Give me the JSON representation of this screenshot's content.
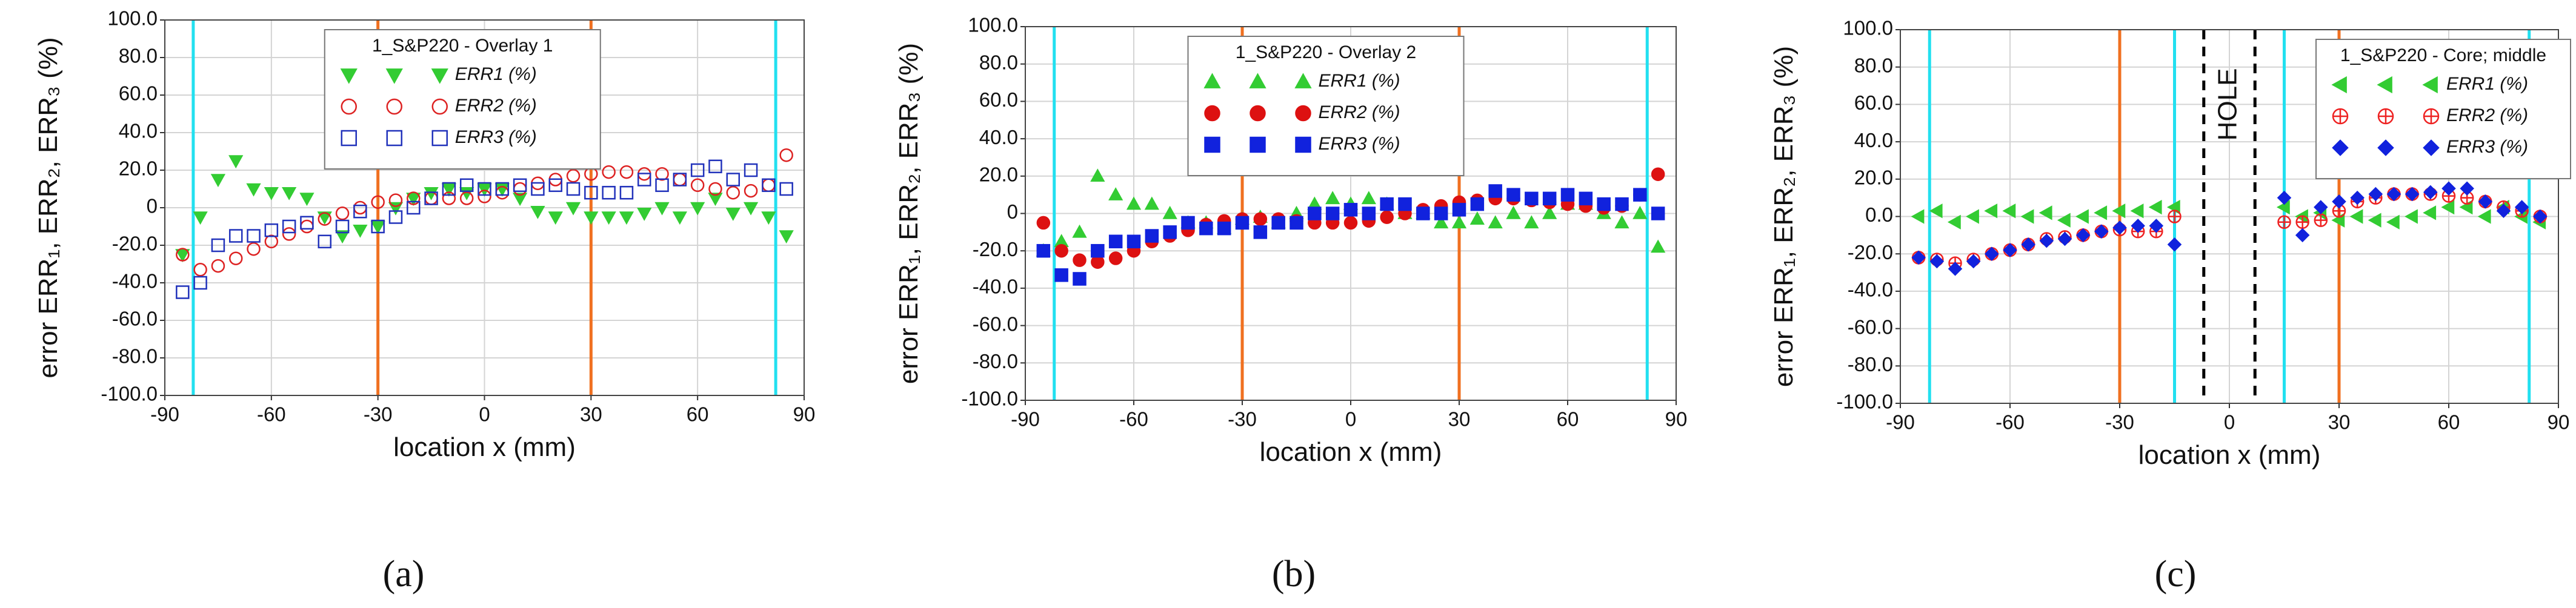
{
  "chart_data": [
    {
      "type": "scatter",
      "caption": "(a)",
      "legend_title": "1_S&P220 - Overlay 1",
      "legend": "upper center",
      "xlabel": "location x (mm)",
      "ylabel": "error ERR₁, ERR₂, ERR₃ (%)",
      "xlim": [
        -90,
        90
      ],
      "xticks": [
        -90,
        -60,
        -30,
        0,
        30,
        60,
        90
      ],
      "ylim": [
        -100,
        100
      ],
      "yticks": [
        {
          "value": -100,
          "label": "-100.0"
        },
        {
          "value": -80,
          "label": "-80.0"
        },
        {
          "value": -60,
          "label": "-60.0"
        },
        {
          "value": -40,
          "label": "-40.0"
        },
        {
          "value": -20,
          "label": "-20.0"
        },
        0,
        {
          "value": 20,
          "label": "20.0"
        },
        {
          "value": 40,
          "label": "40.0"
        },
        {
          "value": 60,
          "label": "60.0"
        },
        {
          "value": 80,
          "label": "80.0"
        },
        {
          "value": 100,
          "label": "100.0"
        }
      ],
      "grid": true,
      "vlines": [
        {
          "x": -82,
          "color": "#22e0f0",
          "style": "solid"
        },
        {
          "x": -30,
          "color": "#f07020",
          "style": "solid"
        },
        {
          "x": 30,
          "color": "#f07020",
          "style": "solid"
        },
        {
          "x": 82,
          "color": "#22e0f0",
          "style": "solid"
        }
      ],
      "x": [
        -85,
        -80,
        -75,
        -70,
        -65,
        -60,
        -55,
        -50,
        -45,
        -40,
        -35,
        -30,
        -25,
        -20,
        -15,
        -10,
        -5,
        0,
        5,
        10,
        15,
        20,
        25,
        30,
        35,
        40,
        45,
        50,
        55,
        60,
        65,
        70,
        75,
        80,
        85
      ],
      "series": [
        {
          "name": "ERR1 (%)",
          "color": "#33cc33",
          "marker": "triangle-down",
          "filled": true,
          "values": [
            -25,
            -5,
            15,
            25,
            10,
            8,
            8,
            5,
            -5,
            -15,
            -12,
            -10,
            0,
            5,
            8,
            10,
            8,
            10,
            10,
            5,
            -2,
            -5,
            0,
            -5,
            -5,
            -5,
            -3,
            0,
            -5,
            0,
            5,
            -3,
            0,
            -5,
            -15
          ]
        },
        {
          "name": "ERR2 (%)",
          "color": "#dd2222",
          "marker": "circle",
          "filled": false,
          "values": [
            -25,
            -33,
            -31,
            -27,
            -22,
            -18,
            -14,
            -10,
            -6,
            -3,
            0,
            3,
            4,
            5,
            5,
            5,
            5,
            6,
            8,
            10,
            13,
            15,
            17,
            18,
            19,
            19,
            18,
            18,
            15,
            12,
            10,
            8,
            9,
            12,
            28
          ]
        },
        {
          "name": "ERR3 (%)",
          "color": "#2233bb",
          "marker": "square",
          "filled": false,
          "values": [
            -45,
            -40,
            -20,
            -15,
            -15,
            -12,
            -10,
            -8,
            -18,
            -10,
            -2,
            -10,
            -5,
            0,
            5,
            10,
            12,
            10,
            10,
            12,
            10,
            12,
            10,
            8,
            8,
            8,
            15,
            12,
            15,
            20,
            22,
            15,
            20,
            12,
            10
          ]
        }
      ]
    },
    {
      "type": "scatter",
      "caption": "(b)",
      "legend_title": "1_S&P220 - Overlay 2",
      "legend": "upper center",
      "xlabel": "location x (mm)",
      "ylabel": "error ERR₁, ERR₂, ERR₃ (%)",
      "xlim": [
        -90,
        90
      ],
      "xticks": [
        -90,
        -60,
        -30,
        0,
        30,
        60,
        90
      ],
      "ylim": [
        -100,
        100
      ],
      "yticks": [
        {
          "value": -100,
          "label": "-100.0"
        },
        {
          "value": -80,
          "label": "-80.0"
        },
        {
          "value": -60,
          "label": "-60.0"
        },
        {
          "value": -40,
          "label": "-40.0"
        },
        {
          "value": -20,
          "label": "-20.0"
        },
        0,
        {
          "value": 20,
          "label": "20.0"
        },
        {
          "value": 40,
          "label": "40.0"
        },
        {
          "value": 60,
          "label": "60.0"
        },
        {
          "value": 80,
          "label": "80.0"
        },
        {
          "value": 100,
          "label": "100.0"
        }
      ],
      "grid": true,
      "vlines": [
        {
          "x": -82,
          "color": "#22e0f0",
          "style": "solid"
        },
        {
          "x": -30,
          "color": "#f07020",
          "style": "solid"
        },
        {
          "x": 30,
          "color": "#f07020",
          "style": "solid"
        },
        {
          "x": 82,
          "color": "#22e0f0",
          "style": "solid"
        }
      ],
      "x": [
        -85,
        -80,
        -75,
        -70,
        -65,
        -60,
        -55,
        -50,
        -45,
        -40,
        -35,
        -30,
        -25,
        -20,
        -15,
        -10,
        -5,
        0,
        5,
        10,
        15,
        20,
        25,
        30,
        35,
        40,
        45,
        50,
        55,
        60,
        65,
        70,
        75,
        80,
        85
      ],
      "series": [
        {
          "name": "ERR1 (%)",
          "color": "#33cc33",
          "marker": "triangle-up",
          "filled": true,
          "values": [
            -20,
            -15,
            -10,
            20,
            10,
            5,
            5,
            0,
            -5,
            -5,
            -8,
            -3,
            -2,
            -5,
            0,
            5,
            8,
            5,
            8,
            5,
            0,
            0,
            -5,
            -5,
            -3,
            -5,
            0,
            -5,
            0,
            5,
            5,
            0,
            -5,
            0,
            -18
          ]
        },
        {
          "name": "ERR2 (%)",
          "color": "#dd1111",
          "marker": "circle",
          "filled": true,
          "values": [
            -5,
            -20,
            -25,
            -26,
            -24,
            -20,
            -15,
            -12,
            -9,
            -6,
            -4,
            -3,
            -3,
            -3,
            -4,
            -5,
            -5,
            -5,
            -4,
            -2,
            0,
            2,
            4,
            6,
            7,
            8,
            8,
            7,
            6,
            5,
            4,
            3,
            4,
            10,
            21
          ]
        },
        {
          "name": "ERR3 (%)",
          "color": "#1122dd",
          "marker": "square",
          "filled": true,
          "values": [
            -20,
            -33,
            -35,
            -20,
            -15,
            -15,
            -12,
            -10,
            -5,
            -8,
            -8,
            -5,
            -10,
            -5,
            -5,
            0,
            0,
            2,
            0,
            5,
            5,
            0,
            0,
            2,
            5,
            12,
            10,
            8,
            8,
            10,
            8,
            5,
            5,
            10,
            0
          ]
        }
      ]
    },
    {
      "type": "scatter",
      "caption": "(c)",
      "legend_title": "1_S&P220 - Core; middle",
      "legend": "upper right",
      "annotation": "HOLE",
      "xlabel": "location x (mm)",
      "ylabel": "error ERR₁, ERR₂, ERR₃ (%)",
      "xlim": [
        -90,
        90
      ],
      "xticks": [
        -90,
        -60,
        -30,
        0,
        30,
        60,
        90
      ],
      "ylim": [
        -100,
        100
      ],
      "yticks": [
        {
          "value": -100,
          "label": "-100.0"
        },
        {
          "value": -80,
          "label": "-80.0"
        },
        {
          "value": -60,
          "label": "-60.0"
        },
        {
          "value": -40,
          "label": "-40.0"
        },
        {
          "value": -20,
          "label": "-20.0"
        },
        {
          "value": 0,
          "label": "0.0"
        },
        {
          "value": 20,
          "label": "20.0"
        },
        {
          "value": 40,
          "label": "40.0"
        },
        {
          "value": 60,
          "label": "60.0"
        },
        {
          "value": 80,
          "label": "80.0"
        },
        {
          "value": 100,
          "label": "100.0"
        }
      ],
      "grid": true,
      "vlines": [
        {
          "x": -82,
          "color": "#22e0f0",
          "style": "solid"
        },
        {
          "x": -30,
          "color": "#f07020",
          "style": "solid"
        },
        {
          "x": -15,
          "color": "#22e0f0",
          "style": "solid"
        },
        {
          "x": -7,
          "color": "#000000",
          "style": "dashed"
        },
        {
          "x": 7,
          "color": "#000000",
          "style": "dashed"
        },
        {
          "x": 15,
          "color": "#22e0f0",
          "style": "solid"
        },
        {
          "x": 30,
          "color": "#f07020",
          "style": "solid"
        },
        {
          "x": 82,
          "color": "#22e0f0",
          "style": "solid"
        }
      ],
      "x": [
        -85,
        -80,
        -75,
        -70,
        -65,
        -60,
        -55,
        -50,
        -45,
        -40,
        -35,
        -30,
        -25,
        -20,
        -15,
        15,
        20,
        25,
        30,
        35,
        40,
        45,
        50,
        55,
        60,
        65,
        70,
        75,
        80,
        85
      ],
      "series": [
        {
          "name": "ERR1 (%)",
          "color": "#33cc33",
          "marker": "triangle-left",
          "filled": true,
          "values": [
            0,
            3,
            -3,
            0,
            3,
            3,
            0,
            2,
            -2,
            0,
            2,
            3,
            3,
            5,
            5,
            5,
            0,
            2,
            -2,
            0,
            -2,
            -3,
            0,
            2,
            5,
            5,
            0,
            5,
            0,
            -3
          ]
        },
        {
          "name": "ERR2 (%)",
          "color": "#ee2222",
          "marker": "circle-plus",
          "filled": false,
          "values": [
            -22,
            -23,
            -25,
            -23,
            -20,
            -18,
            -15,
            -12,
            -11,
            -10,
            -8,
            -7,
            -8,
            -8,
            0,
            -3,
            -3,
            -2,
            3,
            8,
            10,
            12,
            12,
            12,
            11,
            10,
            8,
            5,
            3,
            0
          ]
        },
        {
          "name": "ERR3 (%)",
          "color": "#1122dd",
          "marker": "diamond",
          "filled": true,
          "values": [
            -22,
            -24,
            -28,
            -24,
            -20,
            -18,
            -15,
            -13,
            -12,
            -10,
            -8,
            -6,
            -5,
            -5,
            -15,
            10,
            -10,
            5,
            8,
            10,
            12,
            12,
            12,
            13,
            15,
            15,
            8,
            3,
            5,
            0
          ]
        }
      ]
    }
  ]
}
